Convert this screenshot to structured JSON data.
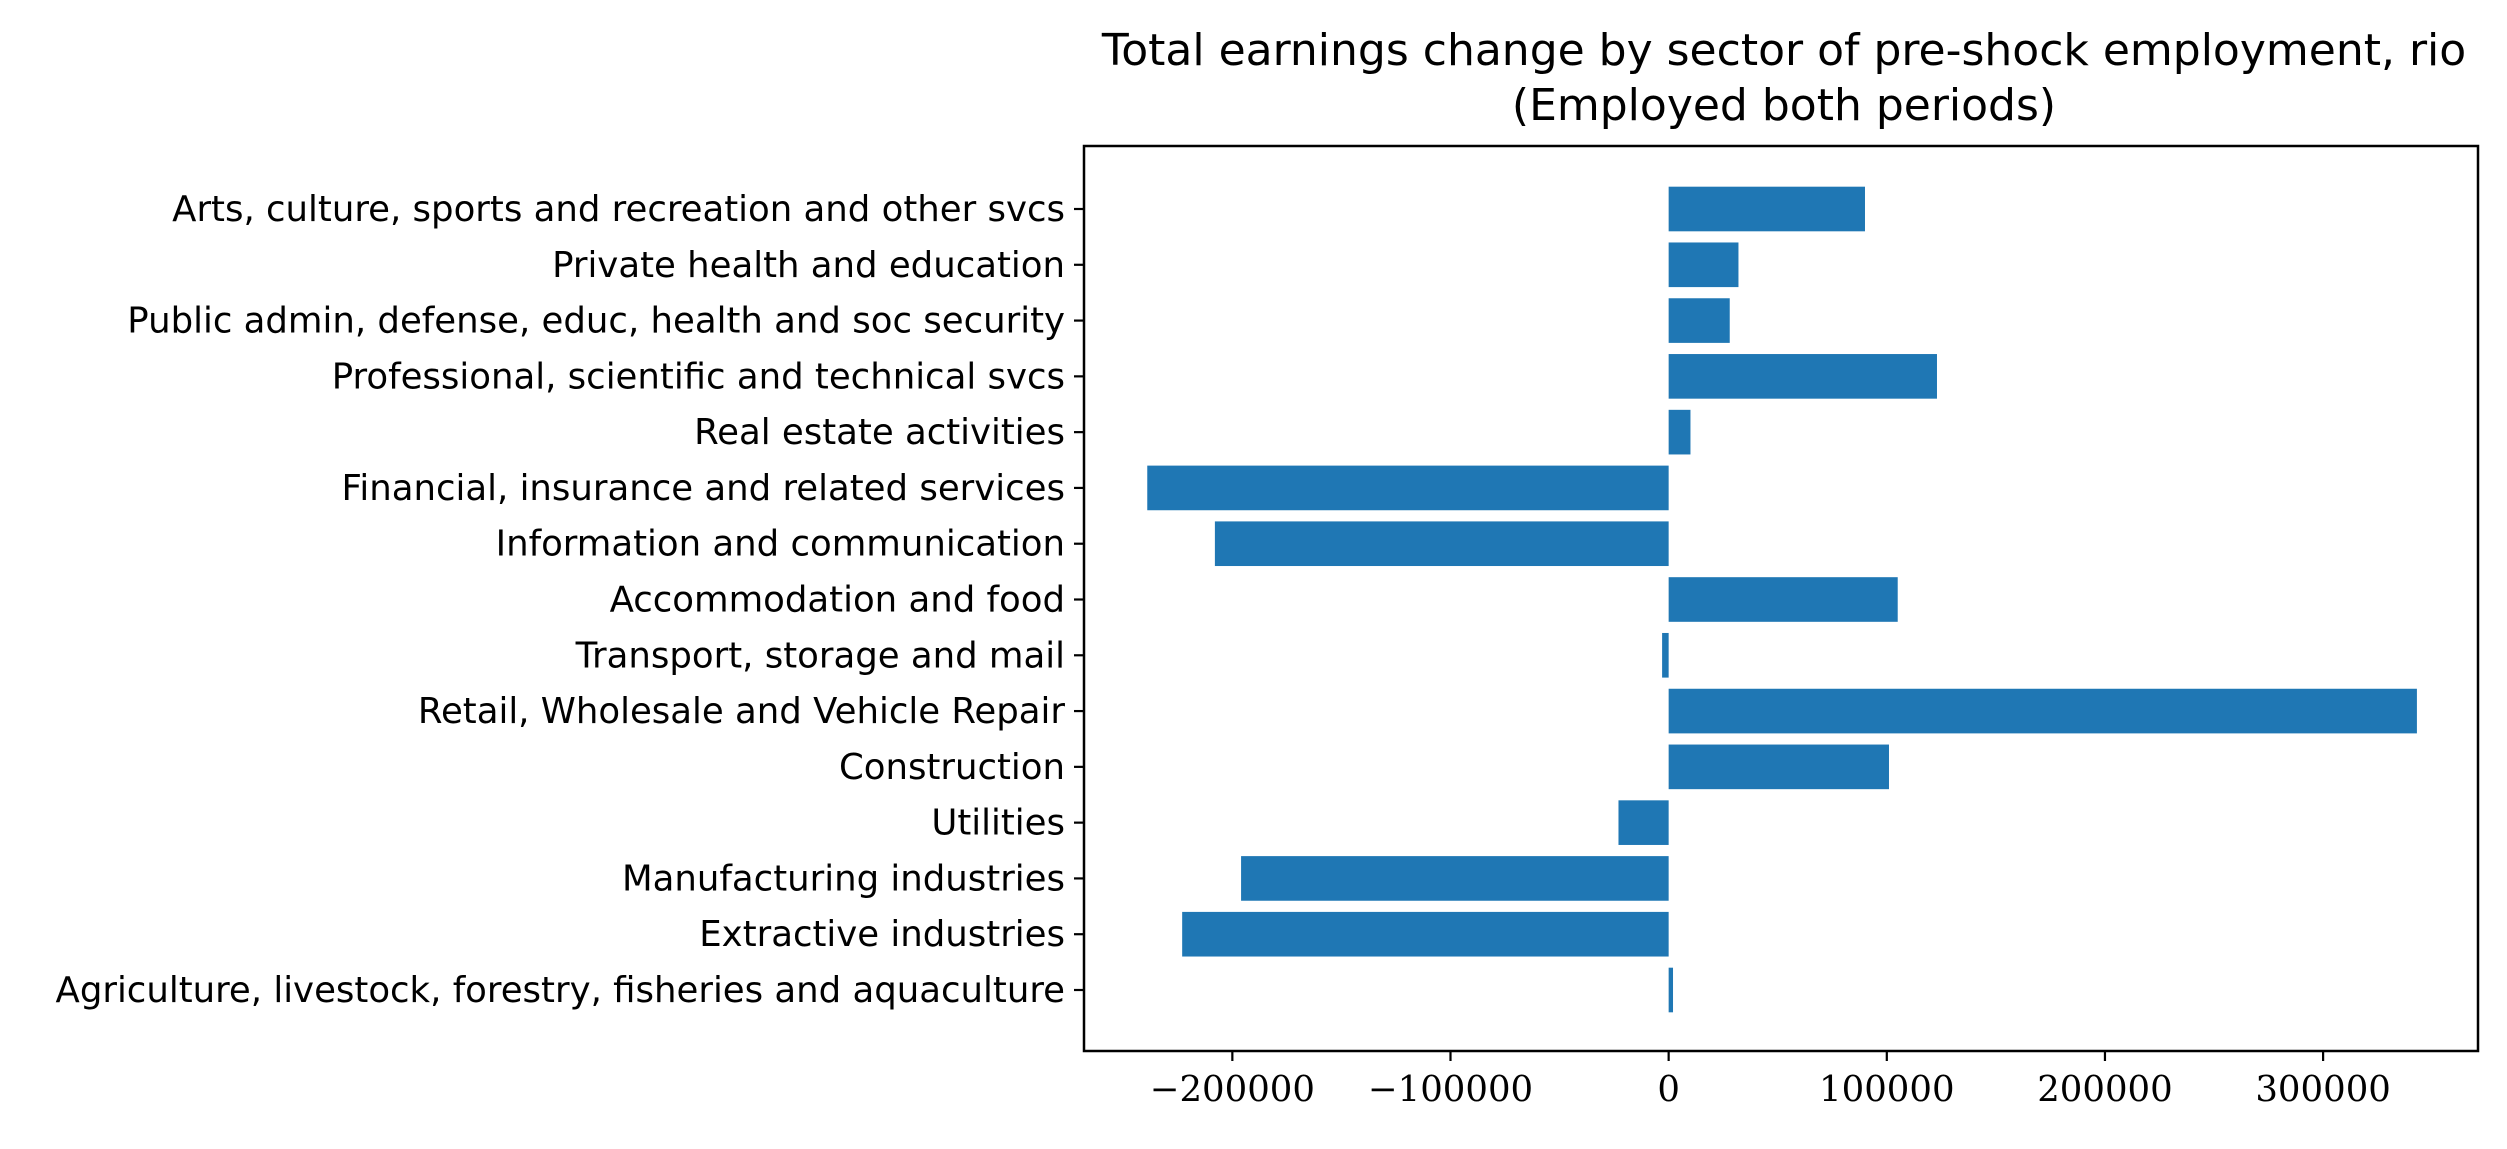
{
  "chart_data": {
    "type": "bar",
    "orientation": "horizontal",
    "title": "Total earnings change by sector of pre-shock employment, rio",
    "subtitle": "(Employed both periods)",
    "xlabel": "",
    "ylabel": "",
    "xlim": [
      -268000,
      371000
    ],
    "xticks": [
      -200000,
      -100000,
      0,
      100000,
      200000,
      300000
    ],
    "xtick_labels": [
      "−200000",
      "−100000",
      "0",
      "100000",
      "200000",
      "300000"
    ],
    "grid": false,
    "bar_color": "#1f77b4",
    "categories": [
      "Agriculture, livestock, forestry, fisheries and aquaculture",
      "Extractive industries",
      "Manufacturing industries",
      "Utilities",
      "Construction",
      "Retail, Wholesale and Vehicle Repair",
      "Transport, storage and mail",
      "Accommodation and food",
      "Information and communication",
      "Financial, insurance and related services",
      "Real estate activities",
      "Professional, scientific and technical svcs",
      "Public admin, defense, educ, health and soc security",
      "Private health and education",
      "Arts, culture, sports and recreation and other svcs"
    ],
    "values": [
      2000,
      -223000,
      -196000,
      -23000,
      101000,
      343000,
      -3000,
      105000,
      -208000,
      -239000,
      10000,
      123000,
      28000,
      32000,
      90000
    ]
  }
}
